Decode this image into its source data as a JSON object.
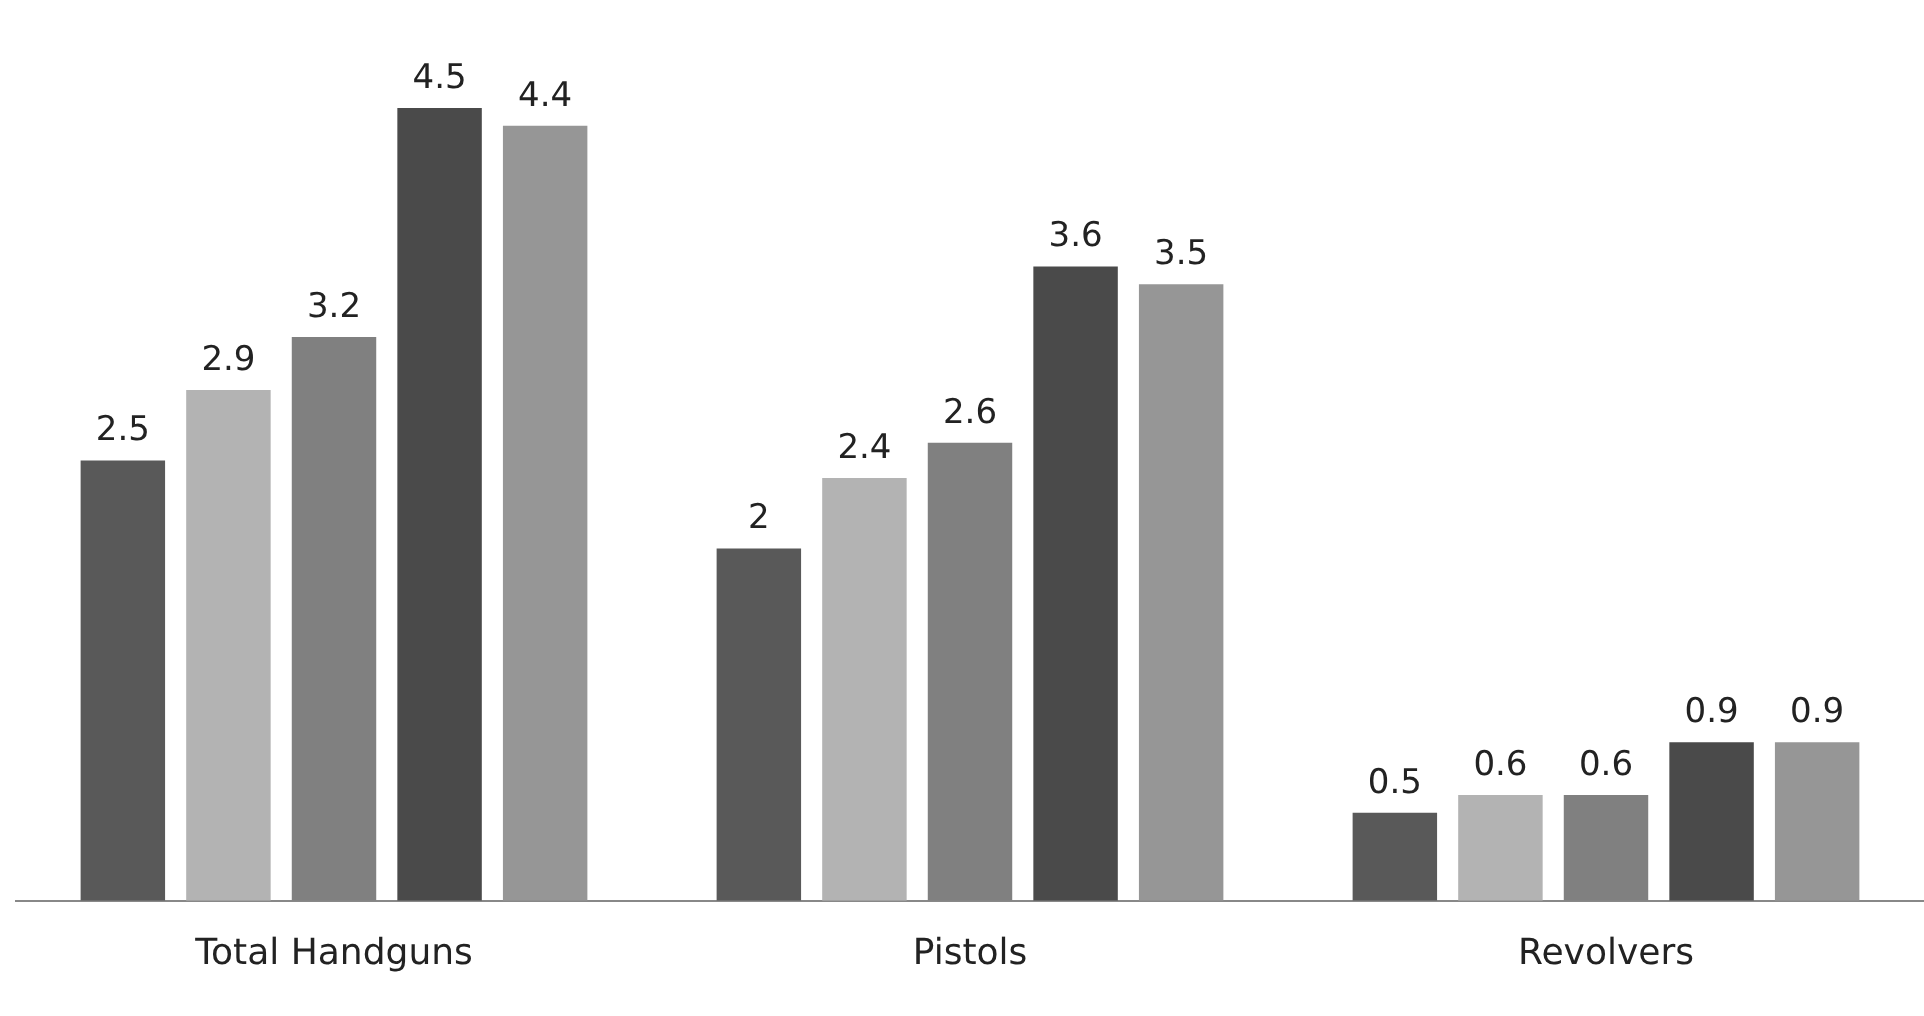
{
  "chart_data": {
    "type": "bar",
    "categories": [
      "Total Handguns",
      "Pistols",
      "Revolvers"
    ],
    "series": [
      {
        "color": "#595959",
        "values": [
          2.5,
          2,
          0.5
        ]
      },
      {
        "color": "#b3b3b3",
        "values": [
          2.9,
          2.4,
          0.6
        ]
      },
      {
        "color": "#808080",
        "values": [
          3.2,
          2.6,
          0.6
        ]
      },
      {
        "color": "#4a4a4a",
        "values": [
          4.5,
          3.6,
          0.9
        ]
      },
      {
        "color": "#969696",
        "values": [
          4.4,
          3.5,
          0.9
        ]
      }
    ],
    "data_labels": true,
    "grid": false,
    "legend": false
  }
}
